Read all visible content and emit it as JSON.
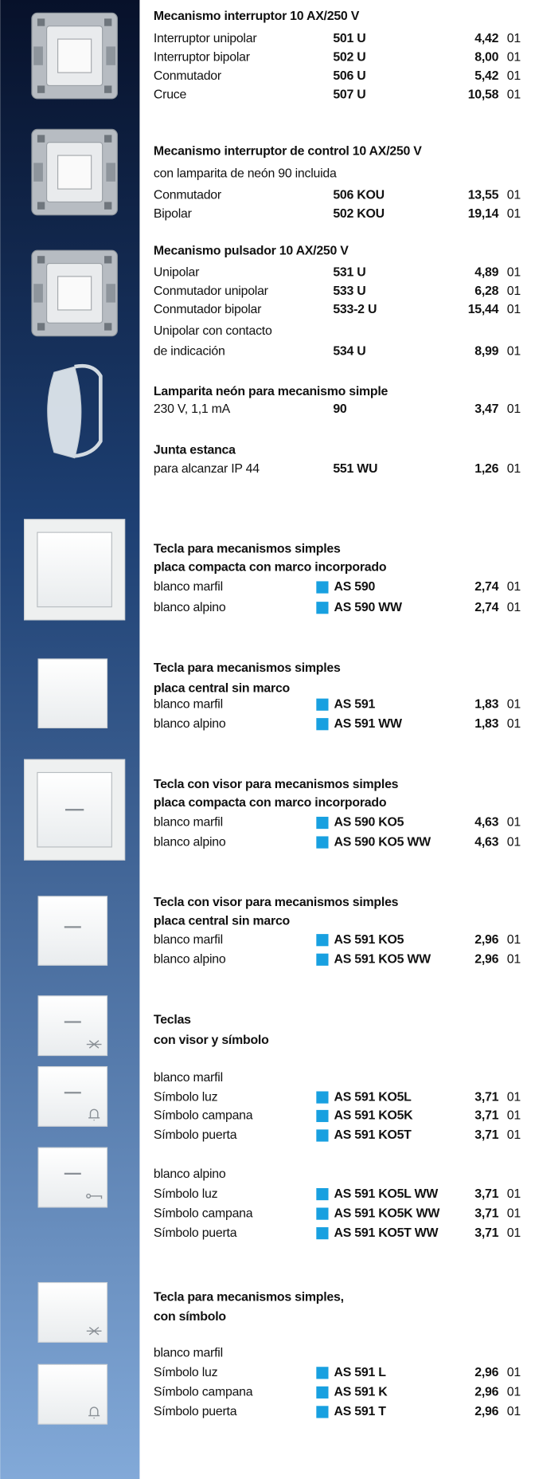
{
  "sections": [
    {
      "title": [
        "Mecanismo interruptor 10 AX/250 V"
      ],
      "lines": [
        {
          "desc": "Interruptor unipolar",
          "code": "501 U",
          "price": "4,42",
          "unit": "01"
        },
        {
          "desc": "Interruptor bipolar",
          "code": "502 U",
          "price": "8,00",
          "unit": "01"
        },
        {
          "desc": "Conmutador",
          "code": "506 U",
          "price": "5,42",
          "unit": "01"
        },
        {
          "desc": "Cruce",
          "code": "507 U",
          "price": "10,58",
          "unit": "01"
        }
      ]
    },
    {
      "title": [
        "Mecanismo interruptor de control 10 AX/250 V"
      ],
      "lines": [
        {
          "desc": "con lamparita de neón 90 incluida"
        },
        {
          "desc": "Conmutador",
          "code": "506 KOU",
          "price": "13,55",
          "unit": "01"
        },
        {
          "desc": "Bipolar",
          "code": "502 KOU",
          "price": "19,14",
          "unit": "01"
        }
      ]
    },
    {
      "title": [
        "Mecanismo pulsador 10 AX/250 V"
      ],
      "lines": [
        {
          "desc": "Unipolar",
          "code": "531 U",
          "price": "4,89",
          "unit": "01"
        },
        {
          "desc": "Conmutador unipolar",
          "code": "533 U",
          "price": "6,28",
          "unit": "01"
        },
        {
          "desc": "Conmutador bipolar",
          "code": "533-2 U",
          "price": "15,44",
          "unit": "01"
        },
        {
          "desc": "Unipolar con contacto"
        },
        {
          "desc": "de indicación",
          "code": "534 U",
          "price": "8,99",
          "unit": "01"
        }
      ]
    },
    {
      "title": [
        "Lamparita neón para mecanismo simple"
      ],
      "lines": [
        {
          "desc": "230 V, 1,1 mA",
          "code": "90",
          "price": "3,47",
          "unit": "01"
        }
      ]
    },
    {
      "title": [
        "Junta estanca"
      ],
      "lines": [
        {
          "desc": "para alcanzar IP 44",
          "code": "551 WU",
          "price": "1,26",
          "unit": "01"
        }
      ]
    },
    {
      "title": [
        "Tecla para mecanismos simples",
        "placa compacta con marco incorporado"
      ],
      "lines": [
        {
          "desc": "blanco marfil",
          "code": "AS 590",
          "price": "2,74",
          "unit": "01",
          "mark": true
        },
        {
          "desc": "blanco alpino",
          "code": "AS 590 WW",
          "price": "2,74",
          "unit": "01",
          "mark": true
        }
      ]
    },
    {
      "title": [
        "Tecla para mecanismos simples",
        "placa central sin marco"
      ],
      "lines": [
        {
          "desc": "blanco marfil",
          "code": "AS 591",
          "price": "1,83",
          "unit": "01",
          "mark": true
        },
        {
          "desc": "blanco alpino",
          "code": "AS 591 WW",
          "price": "1,83",
          "unit": "01",
          "mark": true
        }
      ]
    },
    {
      "title": [
        "Tecla con visor para mecanismos simples",
        "placa compacta con marco incorporado"
      ],
      "lines": [
        {
          "desc": "blanco marfil",
          "code": "AS 590 KO5",
          "price": "4,63",
          "unit": "01",
          "mark": true
        },
        {
          "desc": "blanco alpino",
          "code": "AS 590 KO5 WW",
          "price": "4,63",
          "unit": "01",
          "mark": true
        }
      ]
    },
    {
      "title": [
        "Tecla con visor para mecanismos simples",
        "placa central sin marco"
      ],
      "lines": [
        {
          "desc": "blanco marfil",
          "code": "AS 591 KO5",
          "price": "2,96",
          "unit": "01",
          "mark": true
        },
        {
          "desc": "blanco alpino",
          "code": "AS 591 KO5 WW",
          "price": "2,96",
          "unit": "01",
          "mark": true
        }
      ]
    },
    {
      "title": [
        "Teclas",
        "con visor y símbolo"
      ],
      "lines": [
        {
          "desc": "blanco marfil"
        },
        {
          "desc": "Símbolo luz",
          "code": "AS 591 KO5L",
          "price": "3,71",
          "unit": "01",
          "mark": true
        },
        {
          "desc": "Símbolo campana",
          "code": "AS 591 KO5K",
          "price": "3,71",
          "unit": "01",
          "mark": true
        },
        {
          "desc": "Símbolo puerta",
          "code": "AS 591 KO5T",
          "price": "3,71",
          "unit": "01",
          "mark": true
        },
        {
          "desc": "blanco alpino"
        },
        {
          "desc": "Símbolo luz",
          "code": "AS 591 KO5L WW",
          "price": "3,71",
          "unit": "01",
          "mark": true
        },
        {
          "desc": "Símbolo campana",
          "code": "AS 591 KO5K WW",
          "price": "3,71",
          "unit": "01",
          "mark": true
        },
        {
          "desc": "Símbolo puerta",
          "code": "AS 591 KO5T WW",
          "price": "3,71",
          "unit": "01",
          "mark": true
        }
      ]
    },
    {
      "title": [
        "Tecla para mecanismos simples,",
        "con símbolo"
      ],
      "lines": [
        {
          "desc": "blanco marfil"
        },
        {
          "desc": "Símbolo luz",
          "code": "AS 591 L",
          "price": "2,96",
          "unit": "01",
          "mark": true
        },
        {
          "desc": "Símbolo campana",
          "code": "AS 591 K",
          "price": "2,96",
          "unit": "01",
          "mark": true
        },
        {
          "desc": "Símbolo puerta",
          "code": "AS 591 T",
          "price": "2,96",
          "unit": "01",
          "mark": true
        }
      ]
    }
  ]
}
